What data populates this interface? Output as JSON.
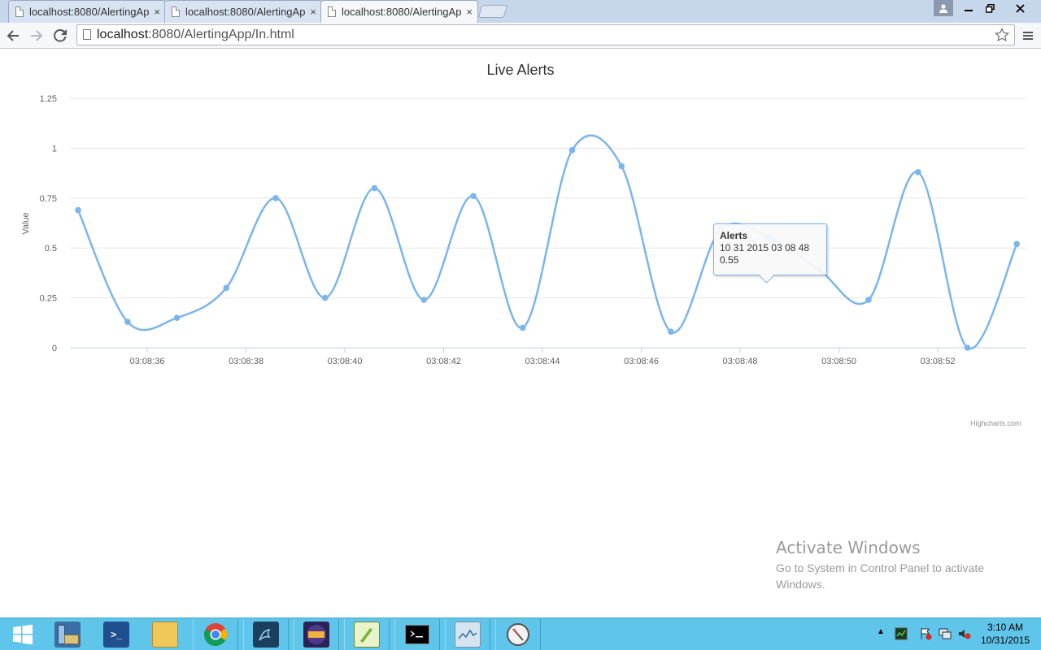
{
  "browser": {
    "tabs": [
      {
        "title": "localhost:8080/AlertingAp",
        "active": false
      },
      {
        "title": "localhost:8080/AlertingAp",
        "active": false
      },
      {
        "title": "localhost:8080/AlertingAp",
        "active": true
      }
    ],
    "tab_close_glyph": "×",
    "url_host": "localhost",
    "url_rest": ":8080/AlertingApp/In.html",
    "icons": {
      "back": "back-arrow-icon",
      "forward": "forward-arrow-icon",
      "reload": "reload-icon",
      "star": "bookmark-star-icon",
      "menu": "hamburger-menu-icon"
    }
  },
  "chart_data": {
    "type": "line",
    "title": "Live Alerts",
    "ylabel": "Value",
    "xlabel": "",
    "ylim": [
      0,
      1.25
    ],
    "yticks": [
      "0",
      "0.25",
      "0.5",
      "0.75",
      "1",
      "1.25"
    ],
    "xticks": [
      "03:08:36",
      "03:08:38",
      "03:08:40",
      "03:08:42",
      "03:08:44",
      "03:08:46",
      "03:08:48",
      "03:08:50",
      "03:08:52"
    ],
    "series": [
      {
        "name": "Alerts",
        "color": "#7cb5ec",
        "x": [
          "03:08:34.6",
          "03:08:35.6",
          "03:08:36.6",
          "03:08:37.6",
          "03:08:38.6",
          "03:08:39.6",
          "03:08:40.6",
          "03:08:41.6",
          "03:08:42.6",
          "03:08:43.6",
          "03:08:44.6",
          "03:08:45.6",
          "03:08:46.6",
          "03:08:47.6",
          "03:08:48.6",
          "03:08:49.6",
          "03:08:50.6",
          "03:08:51.6",
          "03:08:52.6",
          "03:08:53.6"
        ],
        "values": [
          0.69,
          0.13,
          0.15,
          0.3,
          0.75,
          0.25,
          0.8,
          0.24,
          0.76,
          0.1,
          0.99,
          0.91,
          0.08,
          0.59,
          0.55,
          0.39,
          0.24,
          0.88,
          0.0,
          0.52
        ]
      }
    ],
    "grid": true,
    "legend": false,
    "tooltip": {
      "series": "Alerts",
      "date": "10 31 2015 03 08 48",
      "value": "0.55",
      "point_index": 14
    },
    "credits": "Highcharts.com"
  },
  "watermark": {
    "title": "Activate Windows",
    "subtitle": "Go to System in Control Panel to activate Windows."
  },
  "taskbar": {
    "items": [
      {
        "name": "start-icon"
      },
      {
        "name": "server-manager-icon"
      },
      {
        "name": "powershell-icon"
      },
      {
        "name": "file-explorer-icon"
      },
      {
        "name": "chrome-icon"
      },
      {
        "name": "mysql-workbench-icon"
      },
      {
        "name": "java-ee-ide-icon"
      },
      {
        "name": "notepad-plus-plus-icon"
      },
      {
        "name": "command-prompt-icon"
      },
      {
        "name": "performance-monitor-icon"
      },
      {
        "name": "compass-app-icon"
      }
    ],
    "clock": {
      "time": "3:10 AM",
      "date": "10/31/2015"
    }
  }
}
